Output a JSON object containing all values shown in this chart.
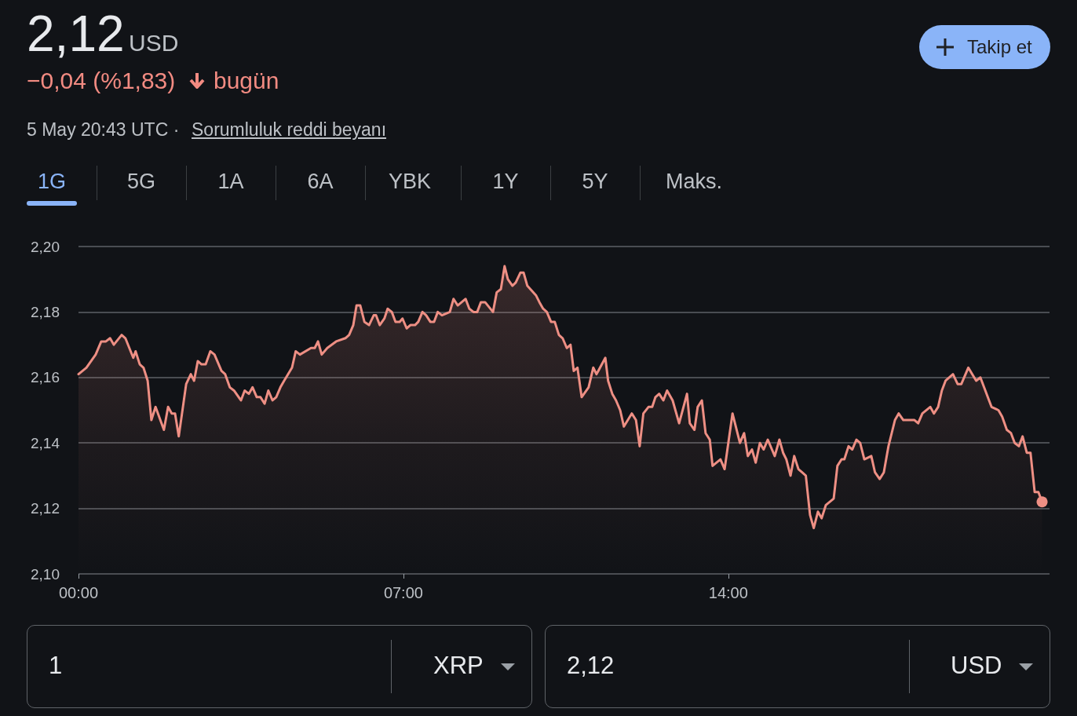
{
  "chart_data": {
    "type": "area",
    "title": "2,12",
    "annotations": [
      "USD",
      "−0,04 (%1,83)",
      "bugün",
      "5 May 20:43 UTC ·",
      "Sorumluluk reddi beyanı",
      "Takip et",
      "1G",
      "5G",
      "1A",
      "6A",
      "YBK",
      "1Y",
      "5Y",
      "Maks.",
      "1",
      "XRP",
      "2,12",
      "USD"
    ],
    "x": [
      0,
      0.17,
      0.37,
      0.49,
      0.59,
      0.68,
      0.76,
      0.93,
      1.01,
      1.18,
      1.23,
      1.32,
      1.4,
      1.49,
      1.57,
      1.66,
      1.84,
      1.93,
      2.01,
      2.08,
      2.16,
      2.32,
      2.42,
      2.49,
      2.57,
      2.65,
      2.74,
      2.84,
      2.93,
      3.08,
      3.16,
      3.26,
      3.35,
      3.5,
      3.58,
      3.67,
      3.75,
      3.84,
      3.92,
      4.01,
      4.09,
      4.18,
      4.26,
      4.35,
      4.43,
      4.6,
      4.68,
      4.77,
      5.01,
      5.09,
      5.16,
      5.24,
      5.36,
      5.55,
      5.75,
      5.83,
      5.92,
      5.99,
      6.07,
      6.16,
      6.26,
      6.36,
      6.41,
      6.49,
      6.59,
      6.66,
      6.75,
      6.83,
      6.92,
      6.98,
      7.07,
      7.15,
      7.25,
      7.32,
      7.41,
      7.49,
      7.58,
      7.66,
      7.74,
      7.83,
      8.0,
      8.08,
      8.17,
      8.34,
      8.42,
      8.51,
      8.59,
      8.67,
      8.76,
      8.93,
      9.01,
      9.1,
      9.18,
      9.25,
      9.35,
      9.42,
      9.52,
      9.59,
      9.67,
      9.86,
      9.93,
      10.01,
      10.09,
      10.18,
      10.26,
      10.35,
      10.43,
      10.52,
      10.6,
      10.67,
      10.75,
      10.84,
      10.99,
      11.09,
      11.16,
      11.35,
      11.41,
      11.5,
      11.58,
      11.67,
      11.75,
      11.92,
      12.01,
      12.09,
      12.17,
      12.28,
      12.36,
      12.43,
      12.51,
      12.6,
      12.68,
      12.8,
      12.94,
      13.11,
      13.17,
      13.27,
      13.34,
      13.43,
      13.51,
      13.6,
      13.66,
      13.83,
      13.92,
      14.09,
      14.25,
      14.34,
      14.42,
      14.51,
      14.59,
      14.68,
      14.76,
      14.85,
      15.0,
      15.1,
      15.18,
      15.25,
      15.34,
      15.42,
      15.51,
      15.59,
      15.67,
      15.76,
      15.84,
      15.93,
      16.01,
      16.1,
      16.27,
      16.35,
      16.44,
      16.5,
      16.59,
      16.67,
      16.76,
      16.84,
      16.93,
      17.08,
      17.16,
      17.26,
      17.35,
      17.45,
      17.59,
      17.67,
      17.77,
      17.86,
      18.01,
      18.09,
      18.18,
      18.35,
      18.43,
      18.52,
      18.6,
      18.68,
      18.84,
      18.94,
      19.02,
      19.17,
      19.34,
      19.43,
      19.51,
      19.67,
      19.82,
      19.9,
      20.0,
      20.09,
      20.17,
      20.26,
      20.34,
      20.43,
      20.51,
      20.6,
      20.68,
      20.76
    ],
    "series": [
      {
        "color": "#ee8f84",
        "values": [
          2.161,
          2.163,
          2.167,
          2.171,
          2.171,
          2.172,
          2.17,
          2.173,
          2.172,
          2.166,
          2.168,
          2.164,
          2.163,
          2.159,
          2.147,
          2.151,
          2.144,
          2.151,
          2.149,
          2.149,
          2.142,
          2.158,
          2.161,
          2.159,
          2.165,
          2.164,
          2.164,
          2.168,
          2.167,
          2.162,
          2.161,
          2.157,
          2.156,
          2.153,
          2.156,
          2.155,
          2.157,
          2.154,
          2.154,
          2.152,
          2.156,
          2.153,
          2.154,
          2.157,
          2.159,
          2.163,
          2.168,
          2.167,
          2.169,
          2.169,
          2.171,
          2.167,
          2.169,
          2.171,
          2.172,
          2.173,
          2.176,
          2.182,
          2.182,
          2.177,
          2.176,
          2.179,
          2.179,
          2.176,
          2.178,
          2.181,
          2.18,
          2.177,
          2.177,
          2.178,
          2.175,
          2.176,
          2.176,
          2.177,
          2.18,
          2.179,
          2.177,
          2.177,
          2.18,
          2.179,
          2.18,
          2.184,
          2.182,
          2.184,
          2.181,
          2.18,
          2.18,
          2.183,
          2.183,
          2.18,
          2.186,
          2.187,
          2.194,
          2.19,
          2.188,
          2.189,
          2.192,
          2.192,
          2.188,
          2.185,
          2.183,
          2.181,
          2.18,
          2.177,
          2.177,
          2.173,
          2.172,
          2.169,
          2.17,
          2.162,
          2.163,
          2.154,
          2.157,
          2.163,
          2.161,
          2.166,
          2.159,
          2.155,
          2.153,
          2.15,
          2.145,
          2.149,
          2.147,
          2.139,
          2.149,
          2.151,
          2.151,
          2.154,
          2.155,
          2.153,
          2.156,
          2.153,
          2.146,
          2.155,
          2.146,
          2.144,
          2.151,
          2.153,
          2.143,
          2.141,
          2.133,
          2.135,
          2.132,
          2.149,
          2.14,
          2.143,
          2.136,
          2.138,
          2.134,
          2.14,
          2.138,
          2.141,
          2.136,
          2.141,
          2.137,
          2.135,
          2.13,
          2.136,
          2.132,
          2.131,
          2.13,
          2.118,
          2.114,
          2.119,
          2.117,
          2.121,
          2.123,
          2.133,
          2.135,
          2.135,
          2.139,
          2.138,
          2.141,
          2.14,
          2.135,
          2.136,
          2.131,
          2.129,
          2.131,
          2.139,
          2.147,
          2.149,
          2.147,
          2.147,
          2.147,
          2.146,
          2.149,
          2.151,
          2.149,
          2.151,
          2.156,
          2.159,
          2.161,
          2.158,
          2.158,
          2.163,
          2.159,
          2.16,
          2.157,
          2.151,
          2.15,
          2.148,
          2.144,
          2.143,
          2.14,
          2.139,
          2.142,
          2.137,
          2.137,
          2.125,
          2.125,
          2.122
        ]
      }
    ],
    "xlim": [
      0,
      20.92
    ],
    "xticks": [
      {
        "value": 0,
        "label": "00:00"
      },
      {
        "value": 7,
        "label": "07:00"
      },
      {
        "value": 14,
        "label": "14:00"
      }
    ],
    "ylim": [
      2.1,
      2.2
    ],
    "yticks": [
      {
        "value": 2.1,
        "label": "2,10"
      },
      {
        "value": 2.12,
        "label": "2,12"
      },
      {
        "value": 2.14,
        "label": "2,14"
      },
      {
        "value": 2.16,
        "label": "2,16"
      },
      {
        "value": 2.18,
        "label": "2,18"
      },
      {
        "value": 2.2,
        "label": "2,20"
      }
    ],
    "grid": "y",
    "marker": "none",
    "line_style": "solid"
  }
}
